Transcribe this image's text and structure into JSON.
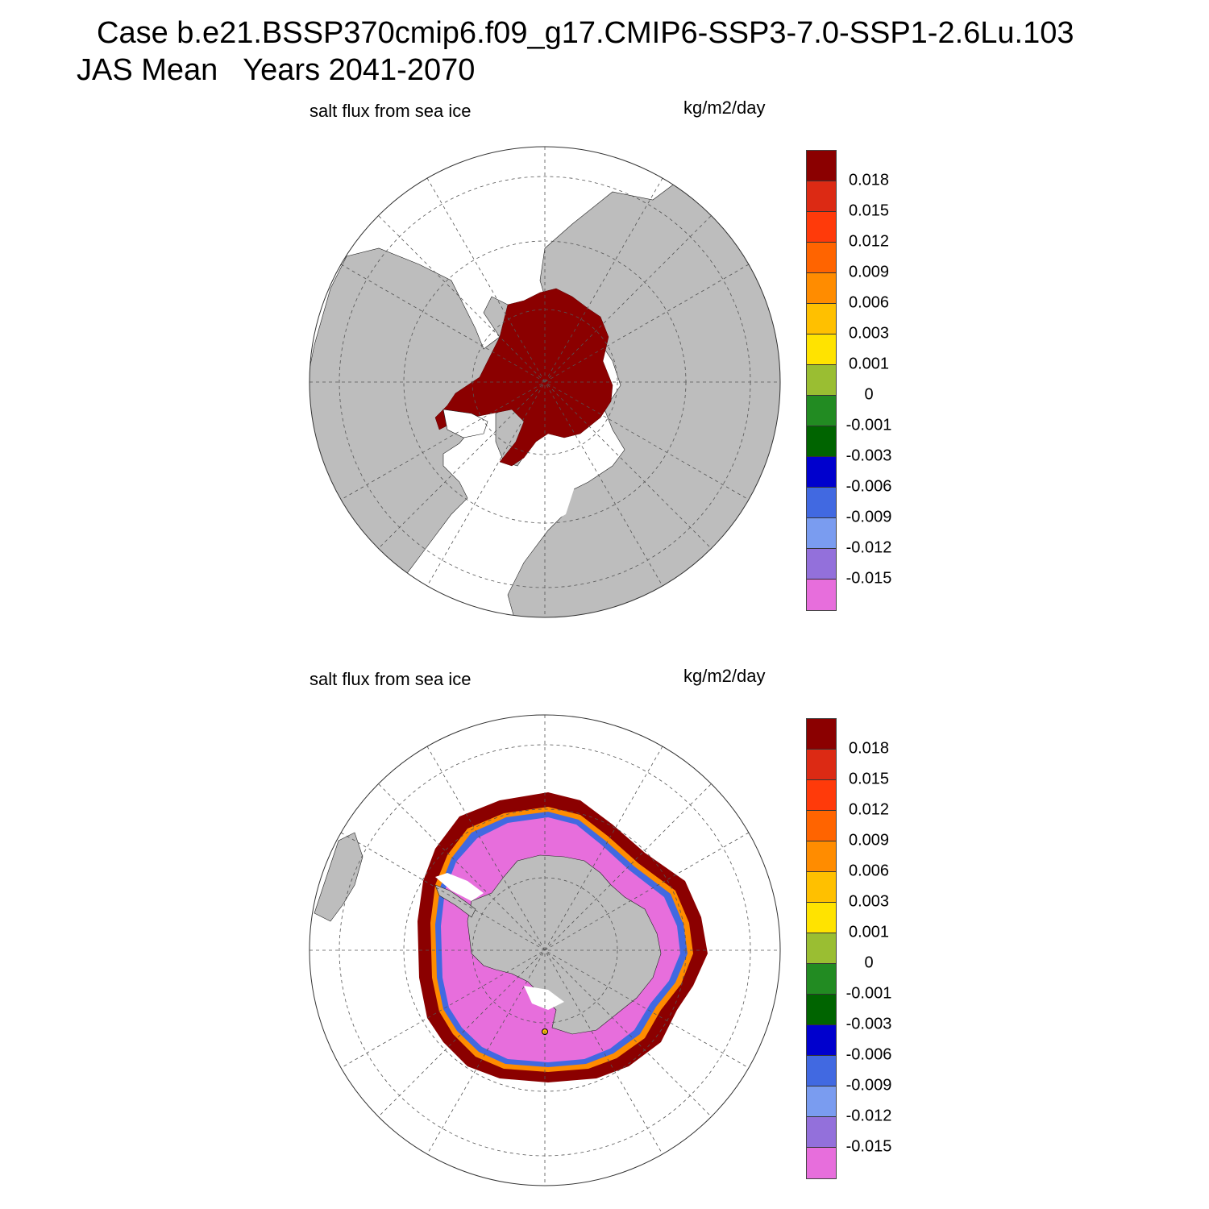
{
  "header": {
    "case_line": "Case b.e21.BSSP370cmip6.f09_g17.CMIP6-SSP3-7.0-SSP1-2.6Lu.103",
    "period_line": "JAS Mean   Years 2041-2070"
  },
  "panels": [
    {
      "id": "north",
      "variable": "salt flux from sea ice",
      "units": "kg/m2/day",
      "hemisphere": "Northern Hemisphere polar stereographic",
      "dominant_value": "positive (>0.018) over central Arctic ice pack"
    },
    {
      "id": "south",
      "variable": "salt flux from sea ice",
      "units": "kg/m2/day",
      "hemisphere": "Southern Hemisphere polar stereographic",
      "dominant_value": "negative (<-0.015) near Antarctic coast, positive (>0.018) at ice edge"
    }
  ],
  "colorbar": {
    "labels": [
      "0.018",
      "0.015",
      "0.012",
      "0.009",
      "0.006",
      "0.003",
      "0.001",
      "0",
      "-0.001",
      "-0.003",
      "-0.006",
      "-0.009",
      "-0.012",
      "-0.015"
    ],
    "colors": [
      "#8b0000",
      "#dc2a14",
      "#ff3a0a",
      "#ff6400",
      "#ff8c00",
      "#ffc000",
      "#ffe300",
      "#9abe32",
      "#228b22",
      "#006400",
      "#0000cd",
      "#4169e1",
      "#7a9cf0",
      "#9370db",
      "#e76edc"
    ]
  },
  "palette": {
    "land": "#bdbdbd",
    "ocean": "#ffffff",
    "grid": "#555555"
  }
}
